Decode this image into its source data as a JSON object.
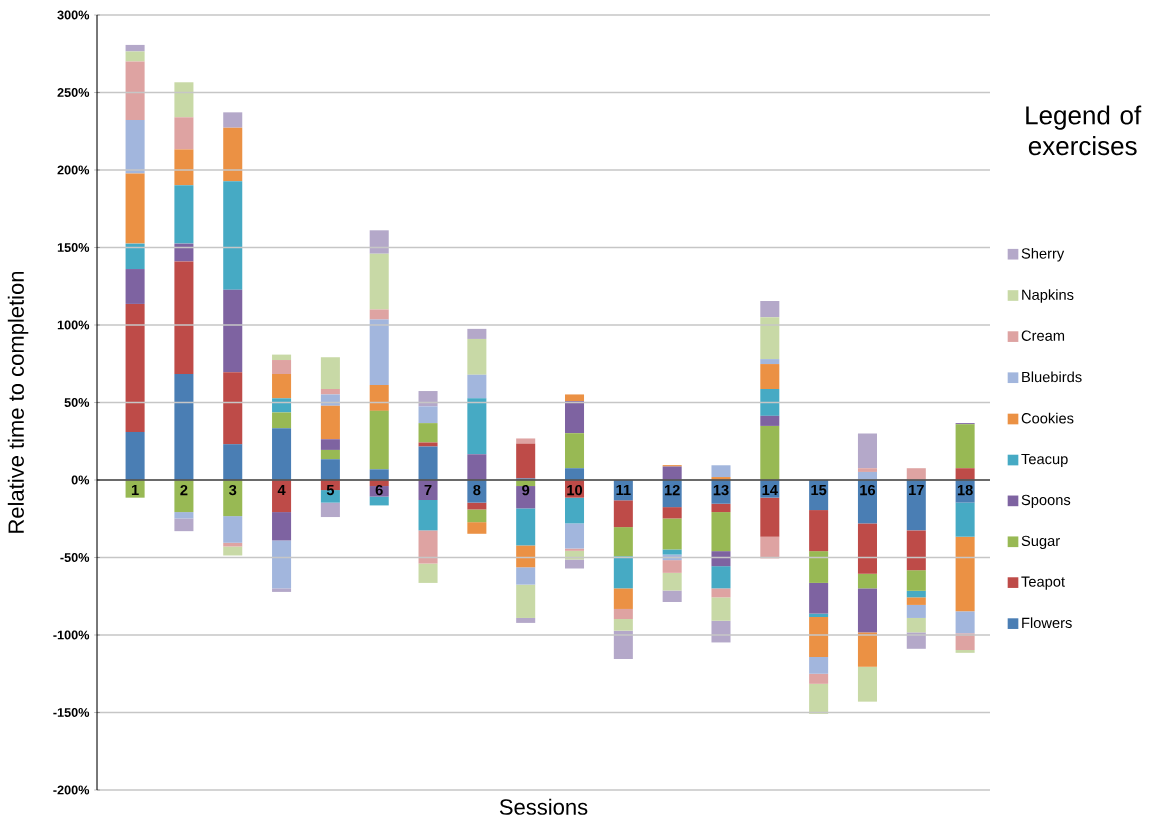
{
  "chart_data": {
    "type": "bar",
    "stacked": true,
    "xlabel": "Sessions",
    "ylabel": "Relative time to completion",
    "legend_title": "Legend of exercises",
    "categories": [
      "1",
      "2",
      "3",
      "4",
      "5",
      "6",
      "7",
      "8",
      "9",
      "10",
      "11",
      "12",
      "13",
      "14",
      "15",
      "16",
      "17",
      "18"
    ],
    "ylim": [
      -200,
      300
    ],
    "yticks": [
      {
        "value": -200,
        "label": "-200%"
      },
      {
        "value": -150,
        "label": "-150%"
      },
      {
        "value": -100,
        "label": "-100%"
      },
      {
        "value": -50,
        "label": "-50%"
      },
      {
        "value": 0,
        "label": "0%"
      },
      {
        "value": 50,
        "label": "50%"
      },
      {
        "value": 100,
        "label": "100%"
      },
      {
        "value": 150,
        "label": "150%"
      },
      {
        "value": 200,
        "label": "200%"
      },
      {
        "value": 250,
        "label": "250%"
      },
      {
        "value": 300,
        "label": "300%"
      }
    ],
    "grid": "y",
    "legend": "right",
    "series": [
      {
        "name": "Flowers",
        "color": "#4a7eb4",
        "values": [
          31.0,
          68.4,
          23.1,
          33.4,
          13.4,
          6.9,
          21.6,
          -14.6,
          1,
          7.6,
          -13.1,
          -17.5,
          -15.3,
          -11.4,
          -19.4,
          -28.0,
          -32.5,
          -14.6
        ]
      },
      {
        "name": "Teapot",
        "color": "#be4b48",
        "values": [
          82.6,
          72.6,
          46.4,
          -20.7,
          -6.5,
          -3.9,
          2.6,
          -4.4,
          22.5,
          -11.4,
          -17.3,
          -7.3,
          -5.4,
          -25.2,
          -26.5,
          -32.5,
          -25.7,
          7.6
        ]
      },
      {
        "name": "Sugar",
        "color": "#98b954",
        "values": [
          -11.4,
          -20.7,
          -23.3,
          10.2,
          6.0,
          37.7,
          12.5,
          -8.2,
          -3.9,
          22.6,
          -18.8,
          -20.0,
          -25.2,
          34.9,
          -20.5,
          -9.4,
          -13.3,
          28.4
        ]
      },
      {
        "name": "Spoons",
        "color": "#7e63a1",
        "values": [
          22.5,
          11.5,
          53.2,
          -18.3,
          6.9,
          -6.8,
          -12.9,
          16.6,
          -14.4,
          20.7,
          null,
          8.7,
          -9.7,
          6.5,
          -19.8,
          -28.4,
          null,
          0.7
        ]
      },
      {
        "name": "Teacup",
        "color": "#46aac4",
        "values": [
          16.4,
          37.7,
          70.1,
          9.1,
          -8.1,
          -5.7,
          -19.6,
          36.1,
          -23.9,
          -16.6,
          -20.7,
          -3.3,
          -14.3,
          17.3,
          -2.2,
          null,
          -4.2,
          -22.0
        ]
      },
      {
        "name": "Cookies",
        "color": "#eb9144",
        "values": [
          45.2,
          23.1,
          34.5,
          15.7,
          21.6,
          16.7,
          null,
          -7.5,
          -14.1,
          4.3,
          -13.3,
          0.9,
          1.9,
          16.1,
          -25.8,
          -22.2,
          -4.9,
          -48.1
        ]
      },
      {
        "name": "Bluebirds",
        "color": "#a2b6dd",
        "values": [
          34.5,
          -4.1,
          -17.2,
          -30.9,
          7.3,
          42.2,
          10.8,
          15.2,
          -11.2,
          -16.2,
          null,
          -3.6,
          7.6,
          3.2,
          -10.8,
          5.2,
          -8.4,
          -14.2
        ]
      },
      {
        "name": "Cream",
        "color": "#dea3a2",
        "values": [
          37.8,
          20.7,
          -2.4,
          9.0,
          3.5,
          6.5,
          -21.4,
          null,
          3.3,
          -1.5,
          -6.5,
          -8.2,
          -5.8,
          -14.0,
          -6.5,
          2.4,
          7.6,
          -10.8
        ]
      },
      {
        "name": "Napkins",
        "color": "#c8d9a6",
        "values": [
          6.5,
          22.6,
          -5.8,
          3.5,
          20.5,
          36.0,
          -12.5,
          23.1,
          -21.5,
          -5.6,
          -7.5,
          -11.4,
          -15.1,
          27.0,
          -19.4,
          -22.5,
          -9.3,
          -1.8
        ]
      },
      {
        "name": "Sherry",
        "color": "#b4a8c9",
        "values": [
          4.2,
          -8.2,
          9.9,
          -2.3,
          -9.3,
          15.1,
          9.9,
          6.5,
          -3.2,
          -5.8,
          -18.3,
          -7.4,
          -14.0,
          10.5,
          null,
          22.4,
          -10.6,
          null
        ]
      }
    ]
  }
}
